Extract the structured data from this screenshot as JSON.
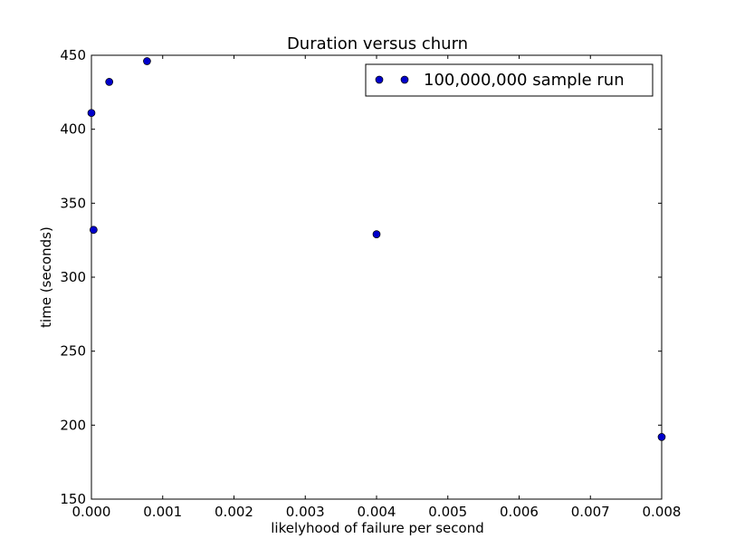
{
  "chart_data": {
    "type": "scatter",
    "title": "Duration versus churn",
    "xlabel": "likelyhood of failure per second",
    "ylabel": "time (seconds)",
    "xlim": [
      0.0,
      0.008
    ],
    "ylim": [
      150,
      450
    ],
    "x_ticks": [
      0.0,
      0.001,
      0.002,
      0.003,
      0.004,
      0.005,
      0.006,
      0.007,
      0.008
    ],
    "x_tick_labels": [
      "0.000",
      "0.001",
      "0.002",
      "0.003",
      "0.004",
      "0.005",
      "0.006",
      "0.007",
      "0.008"
    ],
    "y_ticks": [
      150,
      200,
      250,
      300,
      350,
      400,
      450
    ],
    "y_tick_labels": [
      "150",
      "200",
      "250",
      "300",
      "350",
      "400",
      "450"
    ],
    "grid": false,
    "legend": {
      "position": "top-right"
    },
    "series": [
      {
        "name": "100,000,000 sample run",
        "color": "#0000cc",
        "marker": "circle",
        "points": [
          {
            "x": 0.0,
            "y": 411
          },
          {
            "x": 3e-05,
            "y": 332
          },
          {
            "x": 0.00025,
            "y": 432
          },
          {
            "x": 0.00078,
            "y": 446
          },
          {
            "x": 0.004,
            "y": 329
          },
          {
            "x": 0.008,
            "y": 192
          }
        ]
      }
    ]
  }
}
